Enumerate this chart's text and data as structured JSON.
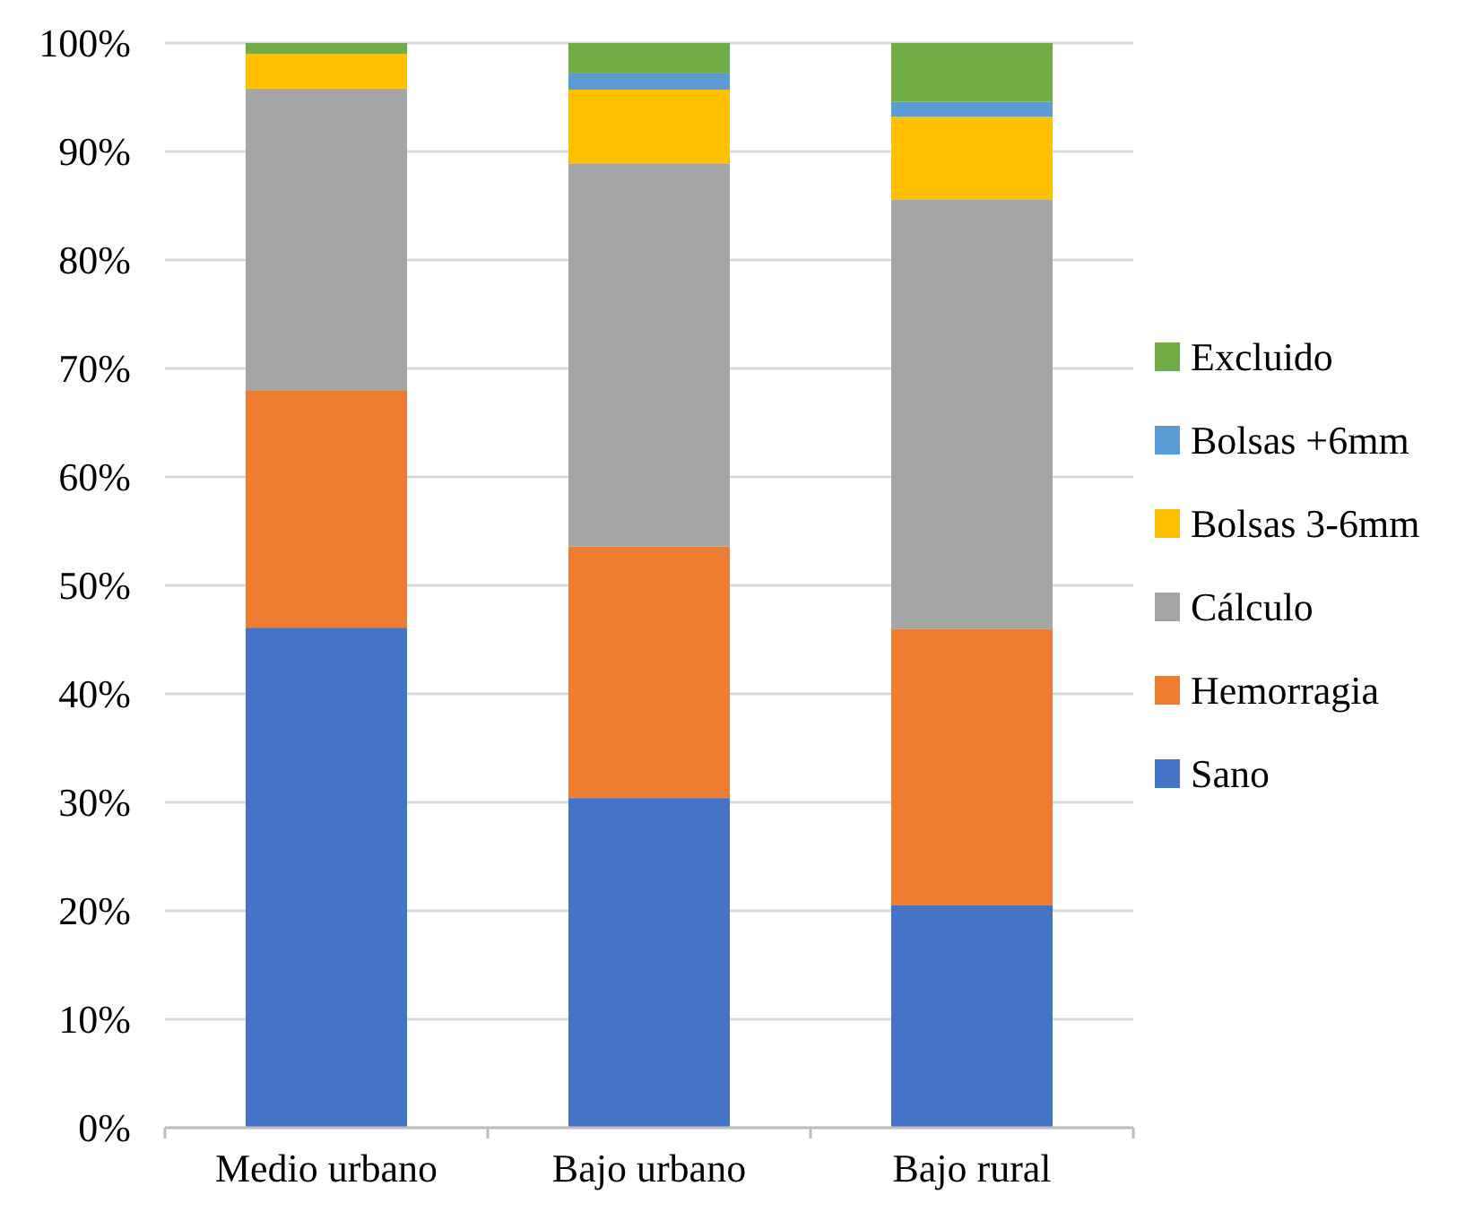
{
  "chart_data": {
    "type": "bar",
    "stacked": true,
    "categories": [
      "Medio urbano",
      "Bajo urbano",
      "Bajo rural"
    ],
    "series": [
      {
        "name": "Sano",
        "color": "#4472c4",
        "values": [
          46.1,
          30.4,
          20.5
        ]
      },
      {
        "name": "Hemorragia",
        "color": "#ed7d31",
        "values": [
          21.9,
          23.2,
          25.5
        ]
      },
      {
        "name": "Cálculo",
        "color": "#a5a5a5",
        "values": [
          27.8,
          35.3,
          39.6
        ]
      },
      {
        "name": "Bolsas 3-6mm",
        "color": "#ffc000",
        "values": [
          3.2,
          6.8,
          7.6
        ]
      },
      {
        "name": "Bolsas +6mm",
        "color": "#5b9bd5",
        "values": [
          0,
          1.5,
          1.4
        ]
      },
      {
        "name": "Excluido",
        "color": "#70ad47",
        "values": [
          1.0,
          2.8,
          5.4
        ]
      }
    ],
    "ylim": [
      0,
      100
    ],
    "yticks": [
      {
        "value": 0,
        "label": "0%"
      },
      {
        "value": 10,
        "label": "10%"
      },
      {
        "value": 20,
        "label": "20%"
      },
      {
        "value": 30,
        "label": "30%"
      },
      {
        "value": 40,
        "label": "40%"
      },
      {
        "value": 50,
        "label": "50%"
      },
      {
        "value": 60,
        "label": "60%"
      },
      {
        "value": 70,
        "label": "70%"
      },
      {
        "value": 80,
        "label": "80%"
      },
      {
        "value": 90,
        "label": "90%"
      },
      {
        "value": 100,
        "label": "100%"
      }
    ],
    "grid": "y",
    "legend": "right"
  }
}
